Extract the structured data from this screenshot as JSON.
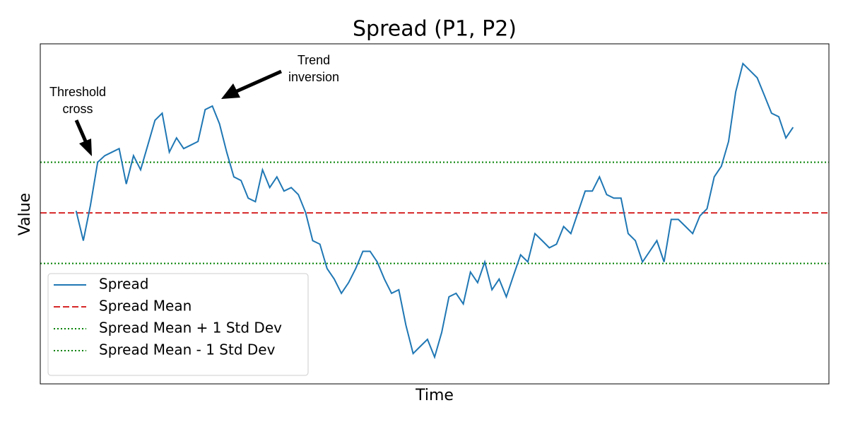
{
  "chart_data": {
    "type": "line",
    "title": "Spread (P1, P2)",
    "x_label": "Time",
    "y_label": "Value",
    "xlim": [
      -5,
      105
    ],
    "ylim": [
      -3.38,
      3.34
    ],
    "series": [
      {
        "name": "Spread",
        "color": "#1f77b4",
        "x": [
          0,
          1,
          2,
          3,
          4,
          5,
          6,
          7,
          8,
          9,
          10,
          11,
          12,
          13,
          14,
          15,
          16,
          17,
          18,
          19,
          20,
          21,
          22,
          23,
          24,
          25,
          26,
          27,
          28,
          29,
          30,
          31,
          32,
          33,
          34,
          35,
          36,
          37,
          38,
          39,
          40,
          41,
          42,
          43,
          44,
          45,
          46,
          47,
          48,
          49,
          50,
          51,
          52,
          53,
          54,
          55,
          56,
          57,
          58,
          59,
          60,
          61,
          62,
          63,
          64,
          65,
          66,
          67,
          68,
          69,
          70,
          71,
          72,
          73,
          74,
          75,
          76,
          77,
          78,
          79,
          80,
          81,
          82,
          83,
          84,
          85,
          86,
          87,
          88,
          89,
          90,
          91,
          92,
          93,
          94,
          95,
          96,
          97,
          98,
          99,
          100
        ],
        "values": [
          0.04,
          -0.55,
          0.15,
          1.0,
          1.13,
          1.2,
          1.27,
          0.57,
          1.13,
          0.85,
          1.34,
          1.83,
          1.97,
          1.2,
          1.48,
          1.27,
          1.34,
          1.41,
          2.04,
          2.11,
          1.76,
          1.2,
          0.71,
          0.64,
          0.29,
          0.22,
          0.85,
          0.5,
          0.71,
          0.43,
          0.5,
          0.36,
          0.01,
          -0.55,
          -0.62,
          -1.1,
          -1.31,
          -1.59,
          -1.38,
          -1.1,
          -0.76,
          -0.76,
          -0.97,
          -1.31,
          -1.59,
          -1.52,
          -2.22,
          -2.78,
          -2.64,
          -2.5,
          -2.85,
          -2.36,
          -1.66,
          -1.59,
          -1.8,
          -1.17,
          -1.38,
          -0.97,
          -1.52,
          -1.31,
          -1.66,
          -1.24,
          -0.83,
          -0.97,
          -0.41,
          -0.55,
          -0.69,
          -0.62,
          -0.27,
          -0.41,
          0.01,
          0.43,
          0.43,
          0.71,
          0.36,
          0.29,
          0.29,
          -0.41,
          -0.55,
          -0.97,
          -0.76,
          -0.55,
          -0.97,
          -0.13,
          -0.13,
          -0.27,
          -0.41,
          -0.06,
          0.08,
          0.71,
          0.92,
          1.41,
          2.39,
          2.95,
          2.81,
          2.67,
          2.32,
          1.97,
          1.9,
          1.48,
          1.69
        ]
      }
    ],
    "reference_lines": [
      {
        "name": "Spread Mean",
        "color": "#d62728",
        "style": "dashed",
        "value": 0
      },
      {
        "name": "Spread Mean + 1 Std Dev",
        "color": "#008000",
        "style": "dotted",
        "value": 1
      },
      {
        "name": "Spread Mean - 1 Std Dev",
        "color": "#008000",
        "style": "dotted",
        "value": -1
      }
    ],
    "annotations": [
      {
        "text": [
          "Threshold",
          "cross"
        ]
      },
      {
        "text": [
          "Trend",
          "inversion"
        ]
      }
    ],
    "legend": "lower left"
  }
}
